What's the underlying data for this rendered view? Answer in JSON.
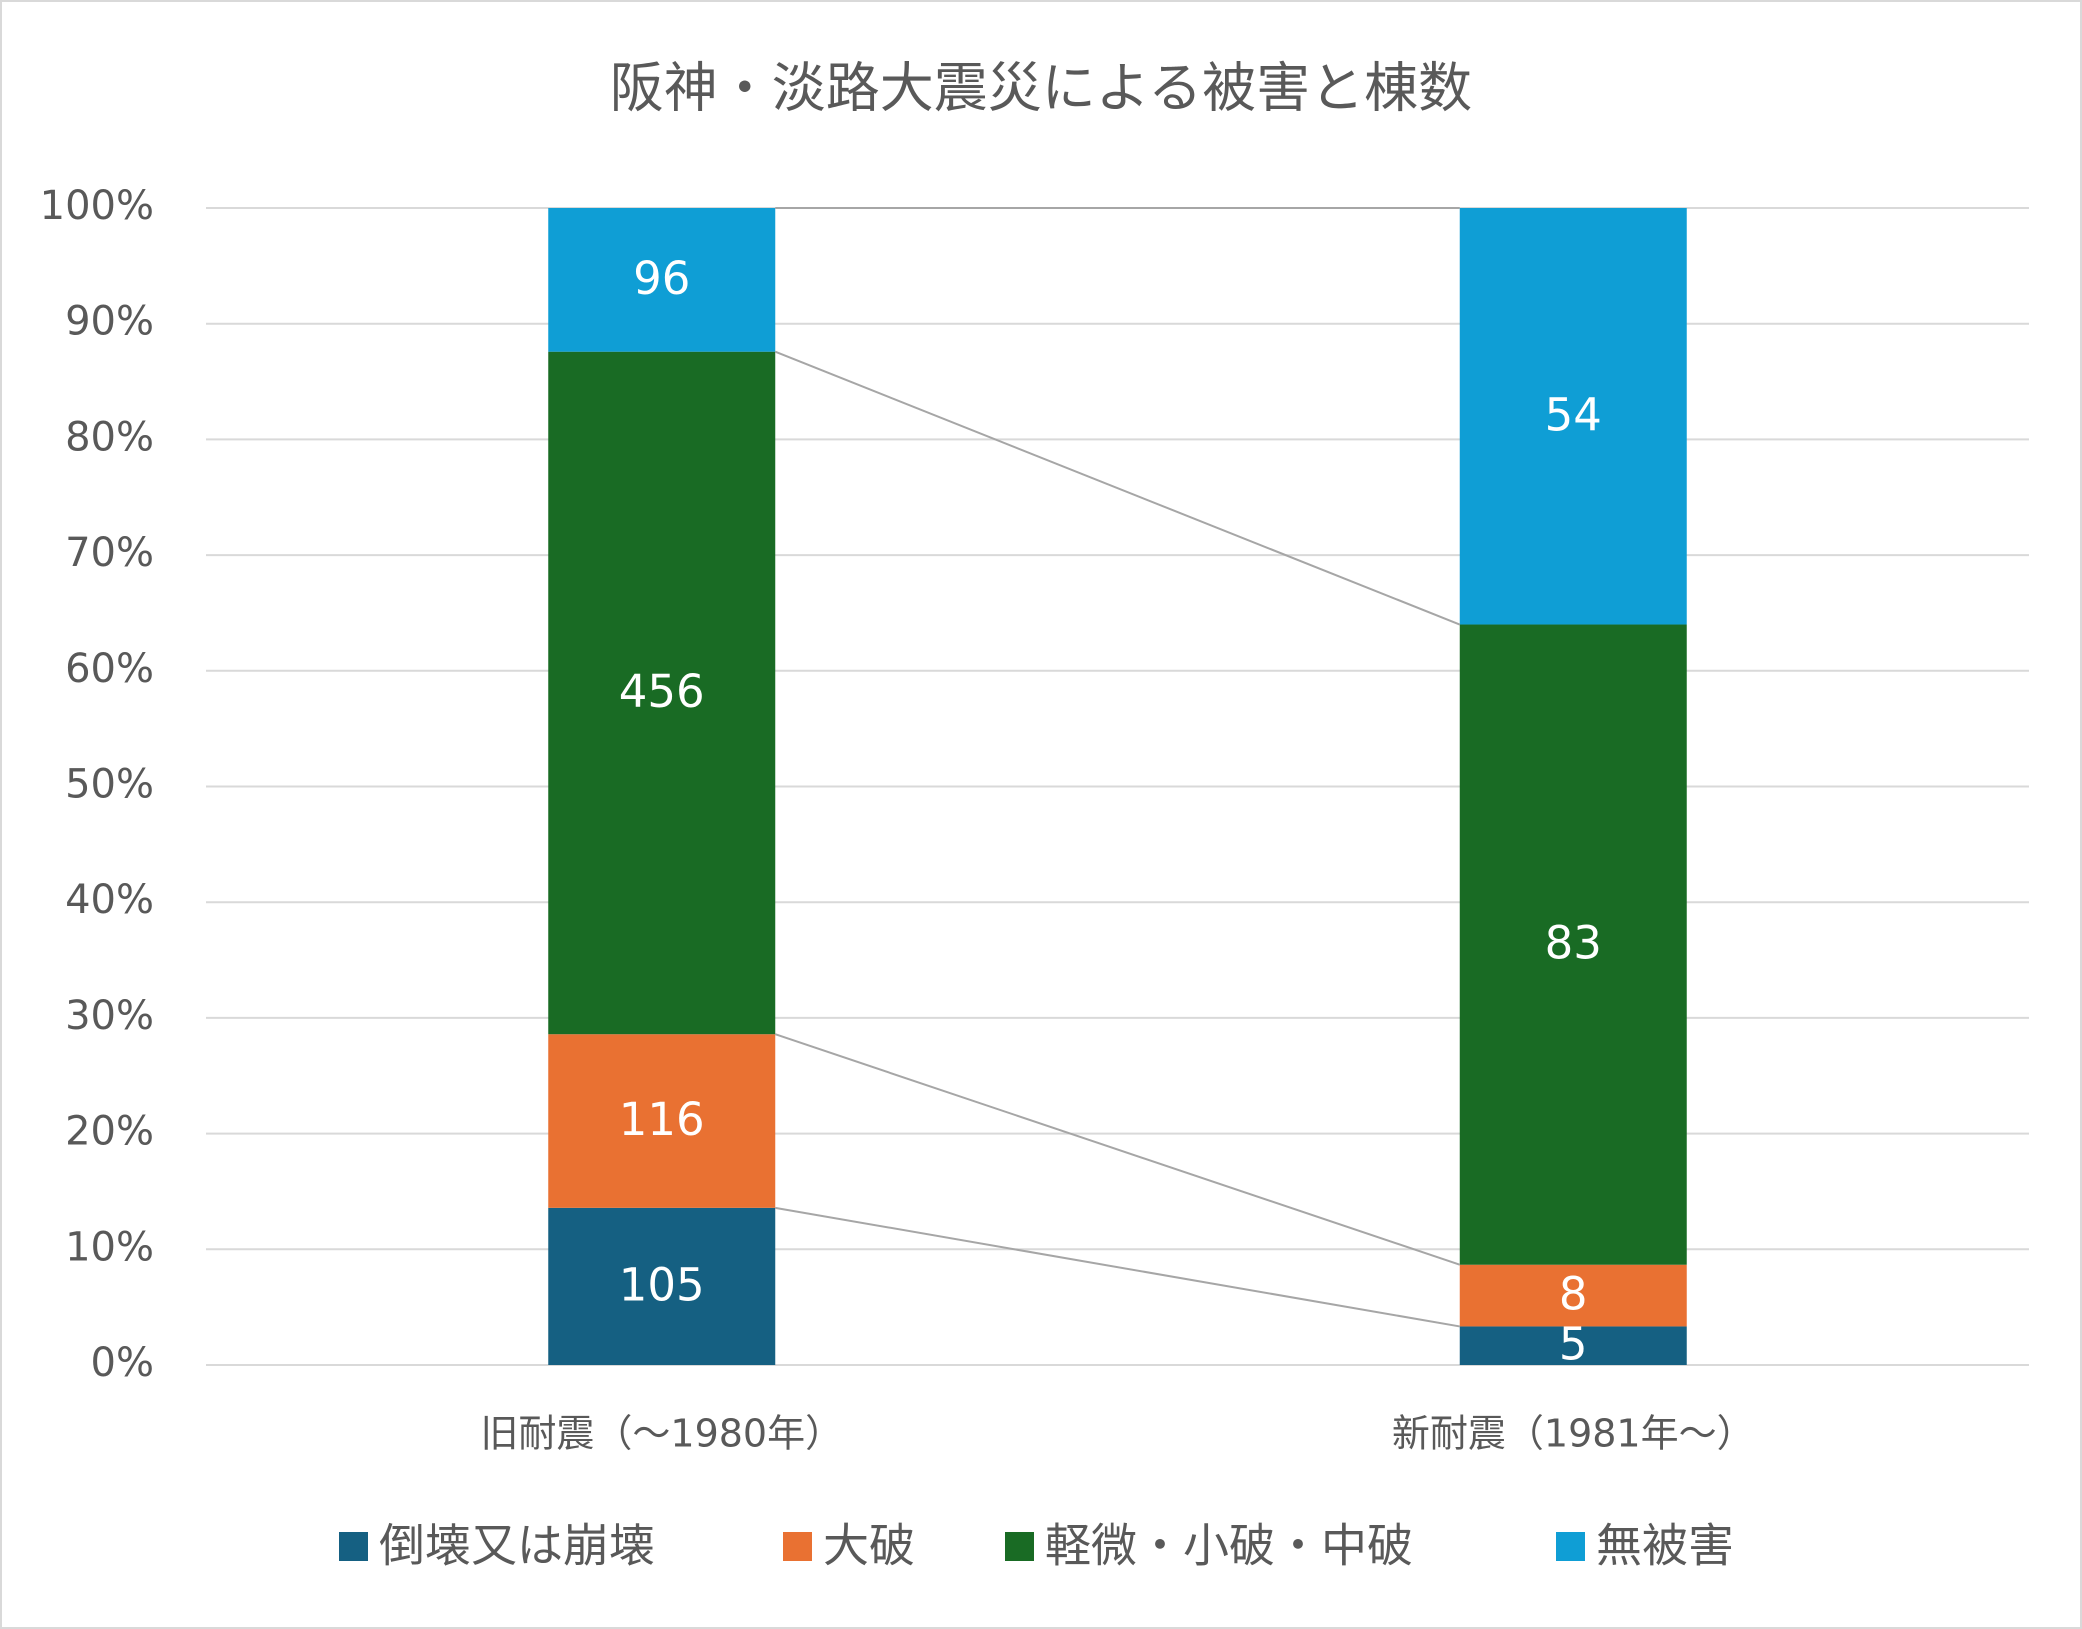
{
  "chart_data": {
    "type": "bar",
    "stack": "percent",
    "series_lines": true,
    "title": "阪神・淡路大震災による被害と棟数",
    "categories": [
      "旧耐震（～1980年）",
      "新耐震（1981年～）"
    ],
    "series": [
      {
        "name": "倒壊又は崩壊",
        "color": "#156082",
        "values": [
          105,
          5
        ]
      },
      {
        "name": "大破",
        "color": "#e97132",
        "values": [
          116,
          8
        ]
      },
      {
        "name": "軽微・小破・中破",
        "color": "#196b24",
        "values": [
          456,
          83
        ]
      },
      {
        "name": "無被害",
        "color": "#0f9ed5",
        "values": [
          96,
          54
        ]
      }
    ],
    "ylim": [
      0,
      100
    ],
    "yticks": [
      {
        "value": 0,
        "label": "0%"
      },
      {
        "value": 10,
        "label": "10%"
      },
      {
        "value": 20,
        "label": "20%"
      },
      {
        "value": 30,
        "label": "30%"
      },
      {
        "value": 40,
        "label": "40%"
      },
      {
        "value": 50,
        "label": "50%"
      },
      {
        "value": 60,
        "label": "60%"
      },
      {
        "value": 70,
        "label": "70%"
      },
      {
        "value": 80,
        "label": "80%"
      },
      {
        "value": 90,
        "label": "90%"
      },
      {
        "value": 100,
        "label": "100%"
      }
    ],
    "grid": true,
    "legend": "bottom"
  }
}
